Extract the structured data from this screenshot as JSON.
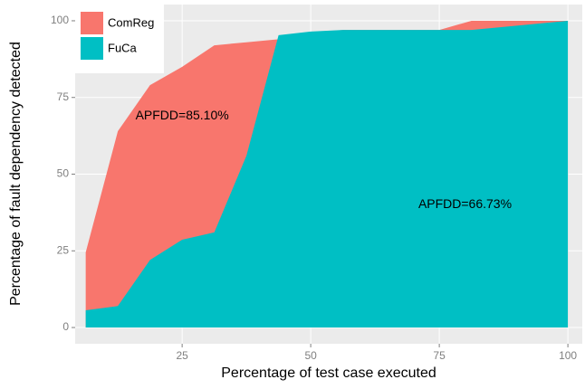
{
  "chart_data": {
    "type": "area",
    "x_label": "Percentage of test case executed",
    "y_label": "Percentage of fault dependency detected",
    "x": [
      6.25,
      12.5,
      18.75,
      25,
      31.25,
      37.5,
      43.75,
      50,
      56.25,
      62.5,
      68.75,
      75,
      81.25,
      87.5,
      93.75,
      100
    ],
    "series": [
      {
        "name": "ComReg",
        "color": "#F8766D",
        "values": [
          24.5,
          64,
          79,
          85,
          92,
          93,
          94,
          96,
          97,
          97,
          97,
          97,
          100,
          100,
          100,
          100
        ]
      },
      {
        "name": "FuCa",
        "color": "#00BFC4",
        "values": [
          5.6,
          7,
          22,
          28.6,
          31,
          56,
          95.3,
          96.5,
          97,
          97,
          97,
          97,
          97,
          98,
          99,
          100
        ]
      }
    ],
    "annotations": [
      {
        "text": "APFDD=85.10%",
        "x": 25,
        "y": 69
      },
      {
        "text": "APFDD=66.73%",
        "x": 80,
        "y": 40
      }
    ],
    "xlim": [
      4.2,
      102.8
    ],
    "xticks": [
      25,
      50,
      75,
      100
    ],
    "ylim": [
      -5.3,
      105.3
    ],
    "yticks": [
      0,
      25,
      50,
      75,
      100
    ],
    "grid": true,
    "legend_position": "top-left"
  }
}
